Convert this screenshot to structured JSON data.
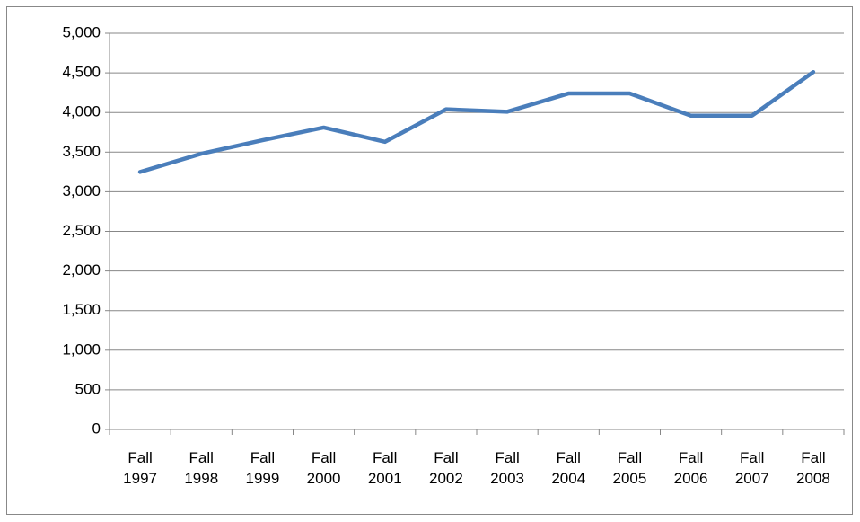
{
  "chart_data": {
    "type": "line",
    "categories": [
      "Fall 1997",
      "Fall 1998",
      "Fall 1999",
      "Fall 2000",
      "Fall 2001",
      "Fall 2002",
      "Fall 2003",
      "Fall 2004",
      "Fall 2005",
      "Fall 2006",
      "Fall 2007",
      "Fall 2008"
    ],
    "values": [
      3250,
      3480,
      3650,
      3810,
      3630,
      4040,
      4010,
      4240,
      4240,
      3960,
      3960,
      4510
    ],
    "color": "#4a7ebb",
    "ylim": [
      0,
      5000
    ],
    "yticks": [
      0,
      500,
      {
        "value": 1000,
        "label": "1,000"
      },
      {
        "value": 1500,
        "label": "1,500"
      },
      {
        "value": 2000,
        "label": "2,000"
      },
      {
        "value": 2500,
        "label": "2,500"
      },
      {
        "value": 3000,
        "label": "3,000"
      },
      {
        "value": 3500,
        "label": "3,500"
      },
      {
        "value": 4000,
        "label": "4,000"
      },
      {
        "value": 4500,
        "label": "4,500"
      },
      {
        "value": 5000,
        "label": "5,000"
      }
    ],
    "grid": true
  }
}
